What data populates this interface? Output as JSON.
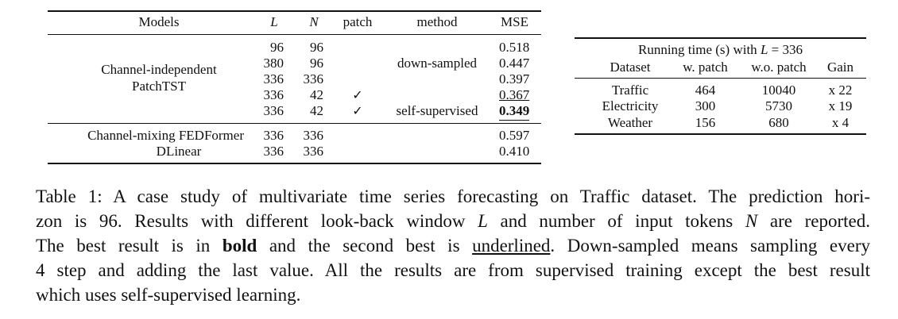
{
  "table1": {
    "headers": {
      "models": "Models",
      "L": "L",
      "N": "N",
      "patch": "patch",
      "method": "method",
      "mse": "MSE"
    },
    "group1_label_line1": "Channel-independent",
    "group1_label_line2": "PatchTST",
    "group1_rows": [
      {
        "L": "96",
        "N": "96",
        "patch": "",
        "method": "",
        "mse": "0.518",
        "style": "normal"
      },
      {
        "L": "380",
        "N": "96",
        "patch": "",
        "method": "down-sampled",
        "mse": "0.447",
        "style": "normal"
      },
      {
        "L": "336",
        "N": "336",
        "patch": "",
        "method": "",
        "mse": "0.397",
        "style": "normal"
      },
      {
        "L": "336",
        "N": "42",
        "patch": "✓",
        "method": "",
        "mse": "0.367",
        "style": "underline"
      },
      {
        "L": "336",
        "N": "42",
        "patch": "✓",
        "method": "self-supervised",
        "mse": "0.349",
        "style": "bold"
      }
    ],
    "group2_rows": [
      {
        "model": "Channel-mixing FEDFormer",
        "L": "336",
        "N": "336",
        "mse": "0.597"
      },
      {
        "model": "DLinear",
        "L": "336",
        "N": "336",
        "mse": "0.410"
      }
    ]
  },
  "table2": {
    "title_prefix": "Running time (s) with ",
    "title_var": "L",
    "title_suffix": " = 336",
    "headers": {
      "dataset": "Dataset",
      "w_patch": "w. patch",
      "wo_patch": "w.o. patch",
      "gain": "Gain"
    },
    "rows": [
      {
        "dataset": "Traffic",
        "w_patch": "464",
        "wo_patch": "10040",
        "gain": "x 22"
      },
      {
        "dataset": "Electricity",
        "w_patch": "300",
        "wo_patch": "5730",
        "gain": "x 19"
      },
      {
        "dataset": "Weather",
        "w_patch": "156",
        "wo_patch": "680",
        "gain": "x 4"
      }
    ]
  },
  "caption": {
    "line1": "Table 1: A case study of multivariate time series forecasting on Traffic dataset. The prediction hori-",
    "line2_a": "zon is 96. Results with different look-back window ",
    "line2_L": "L",
    "line2_b": " and number of input tokens ",
    "line2_N": "N",
    "line2_c": " are reported.",
    "line3_a": "The best result is in ",
    "line3_bold": "bold",
    "line3_b": " and the second best is ",
    "line3_ul": "underlined",
    "line3_c": ". Down-sampled means sampling every",
    "line4": "4 step and adding the last value. All the results are from supervised training except the best result",
    "line5": "which uses self-supervised learning."
  }
}
